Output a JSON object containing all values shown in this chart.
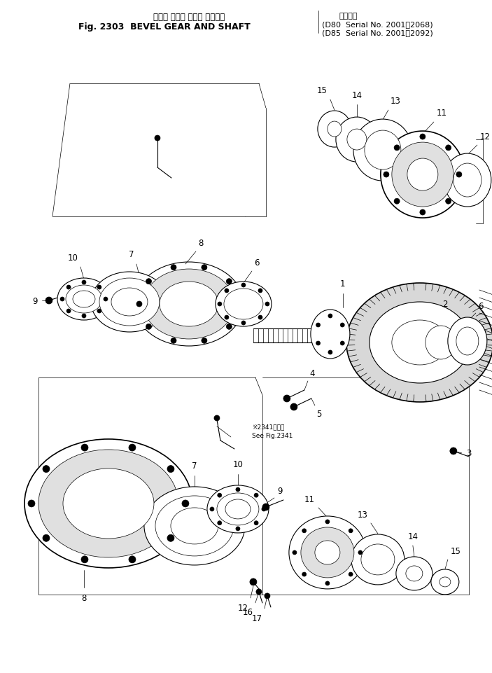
{
  "bg_color": "#ffffff",
  "fig_width": 7.03,
  "fig_height": 9.62,
  "dpi": 100,
  "title_jp": "ベベル ギヤー および シャフト",
  "title_en": "Fig. 2303  BEVEL GEAR AND SHAFT",
  "serial1": "(D80  Serial No. 2001～2068)",
  "serial2": "(D85  Serial No. 2001～2092)",
  "serial_jp": "適用号機"
}
